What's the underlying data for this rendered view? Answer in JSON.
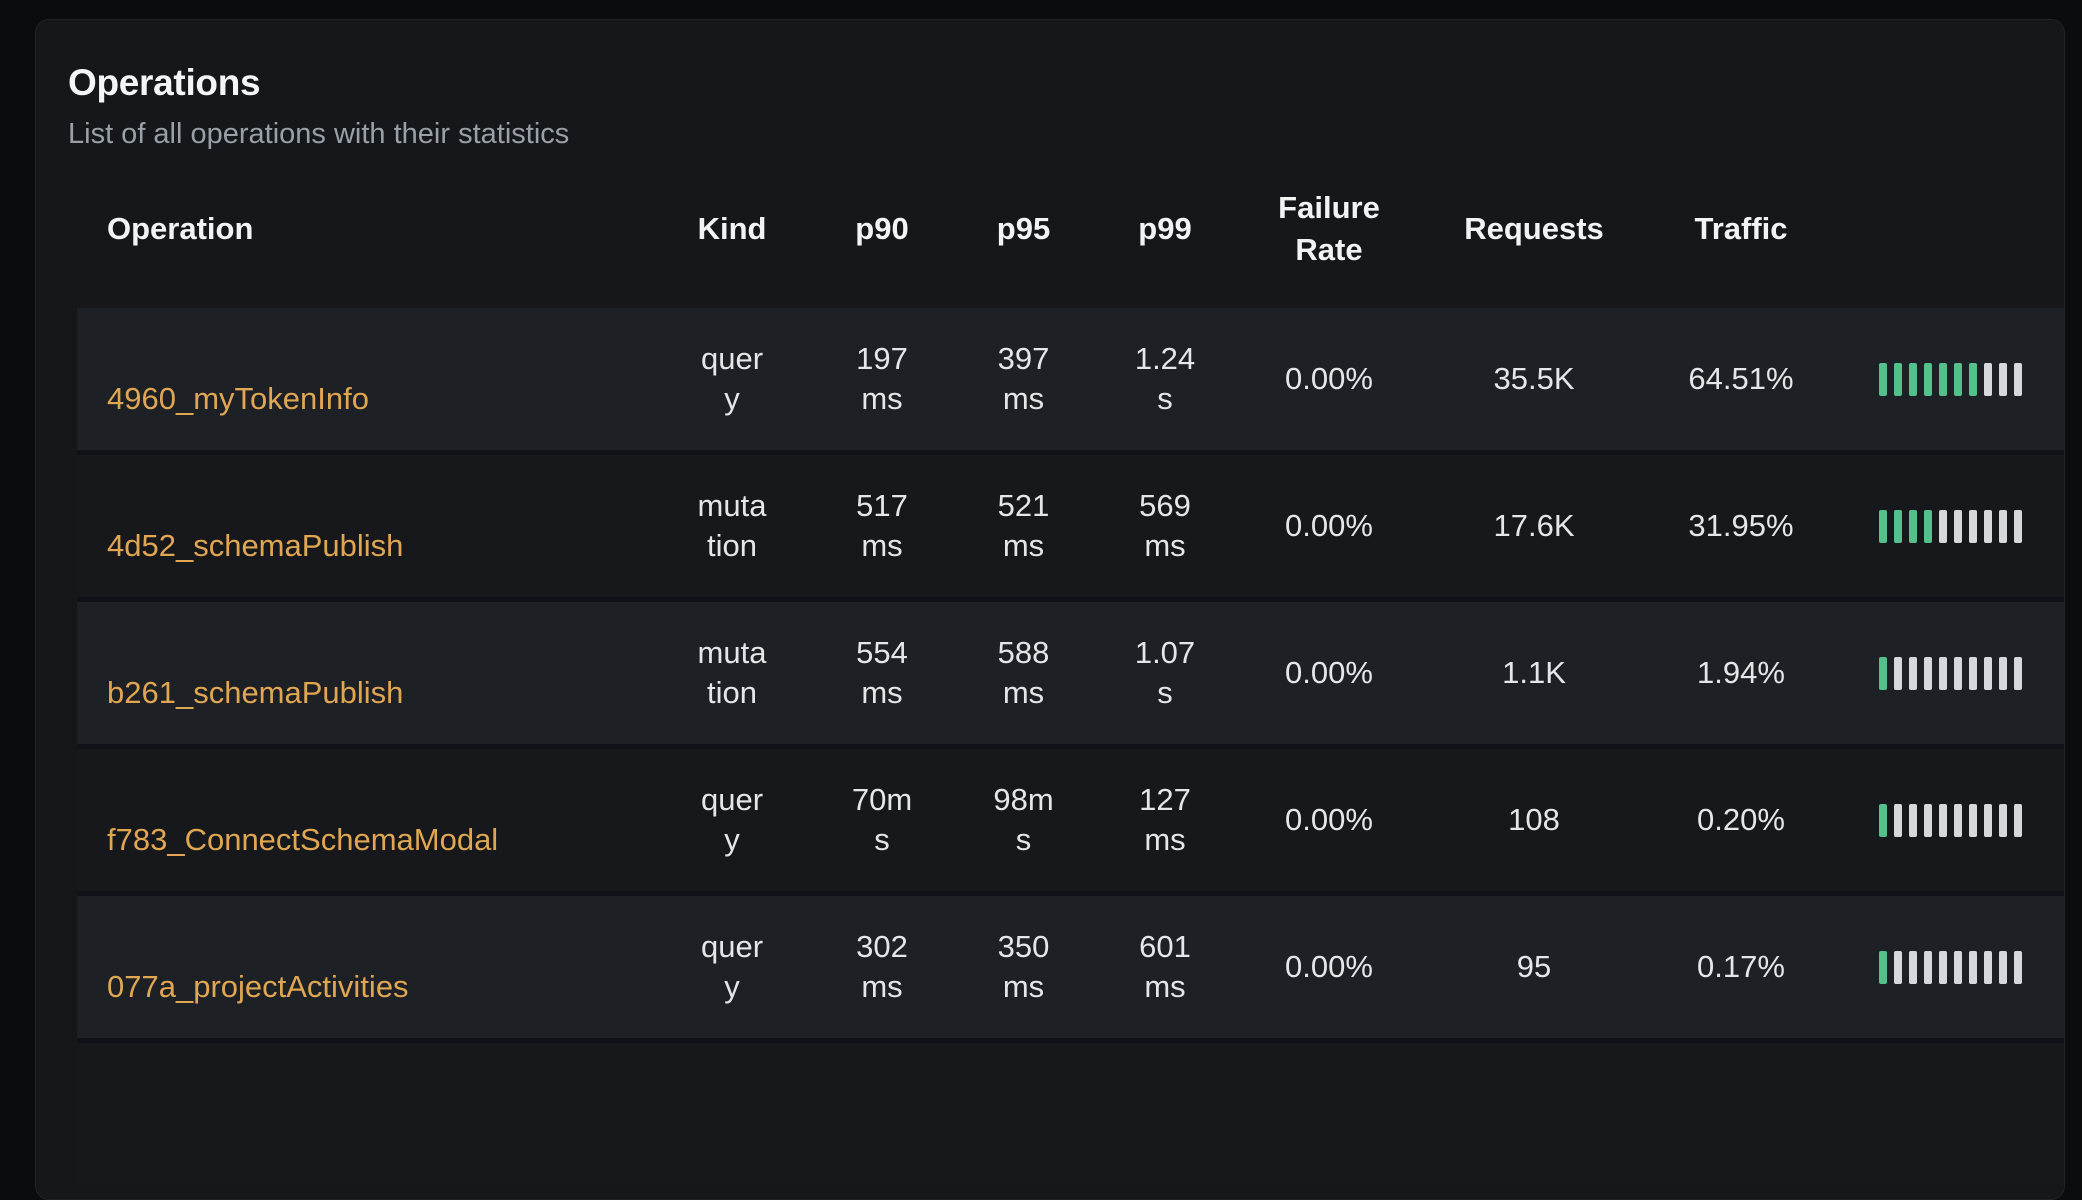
{
  "card": {
    "title": "Operations",
    "subtitle": "List of all operations with their statistics"
  },
  "table": {
    "headers": {
      "operation": "Operation",
      "kind": "Kind",
      "p90": "p90",
      "p95": "p95",
      "p99": "p99",
      "failure_rate": "Failure\nRate",
      "requests": "Requests",
      "traffic": "Traffic"
    },
    "rows": [
      {
        "operation": "4960_myTokenInfo",
        "kind": "quer\ny",
        "p90": "197\nms",
        "p95": "397\nms",
        "p99": "1.24\ns",
        "failure_rate": "0.00%",
        "requests": "35.5K",
        "traffic": "64.51%",
        "bars_filled": 7
      },
      {
        "operation": "4d52_schemaPublish",
        "kind": "muta\ntion",
        "p90": "517\nms",
        "p95": "521\nms",
        "p99": "569\nms",
        "failure_rate": "0.00%",
        "requests": "17.6K",
        "traffic": "31.95%",
        "bars_filled": 4
      },
      {
        "operation": "b261_schemaPublish",
        "kind": "muta\ntion",
        "p90": "554\nms",
        "p95": "588\nms",
        "p99": "1.07\ns",
        "failure_rate": "0.00%",
        "requests": "1.1K",
        "traffic": "1.94%",
        "bars_filled": 1
      },
      {
        "operation": "f783_ConnectSchemaModal",
        "kind": "quer\ny",
        "p90": "70m\ns",
        "p95": "98m\ns",
        "p99": "127\nms",
        "failure_rate": "0.00%",
        "requests": "108",
        "traffic": "0.20%",
        "bars_filled": 1
      },
      {
        "operation": "077a_projectActivities",
        "kind": "quer\ny",
        "p90": "302\nms",
        "p95": "350\nms",
        "p99": "601\nms",
        "failure_rate": "0.00%",
        "requests": "95",
        "traffic": "0.17%",
        "bars_filled": 1
      }
    ],
    "bars_total": 10,
    "has_partial_next_row": true
  },
  "colors": {
    "accent_link": "#e0a652",
    "bar_filled": "#54c08c",
    "bar_empty": "#d6d9dc",
    "row_odd_bg": "#1d2025",
    "row_even_bg": "#16181c"
  }
}
